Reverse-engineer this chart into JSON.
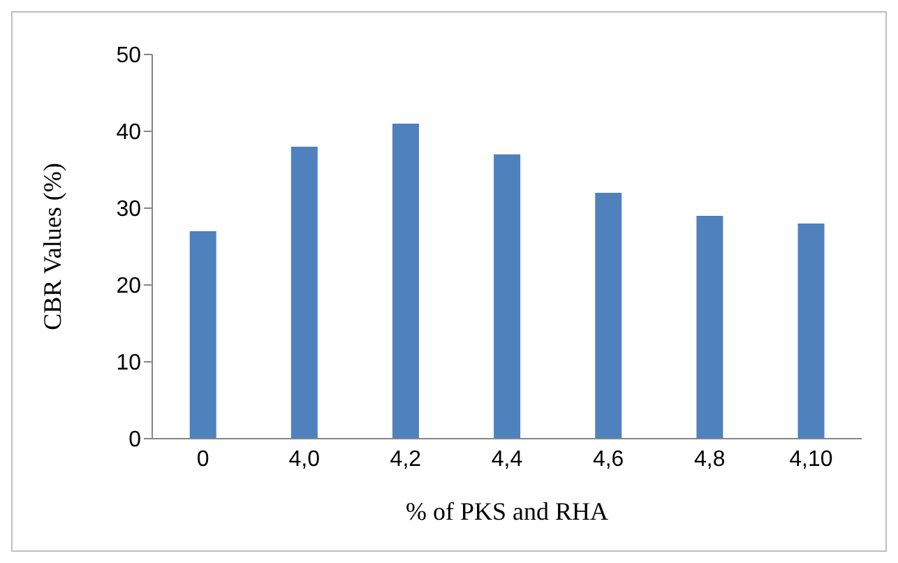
{
  "chart_data": {
    "type": "bar",
    "xlabel": "% of PKS and RHA",
    "ylabel": "CBR Values (%)",
    "categories": [
      "0",
      "4,0",
      "4,2",
      "4,4",
      "4,6",
      "4,8",
      "4,10"
    ],
    "values": [
      27,
      38,
      41,
      37,
      32,
      29,
      28
    ],
    "color": "#4f81bd",
    "ylim": [
      0,
      50
    ],
    "yticks": [
      0,
      10,
      20,
      30,
      40,
      50
    ],
    "grid": false,
    "legend": false
  }
}
